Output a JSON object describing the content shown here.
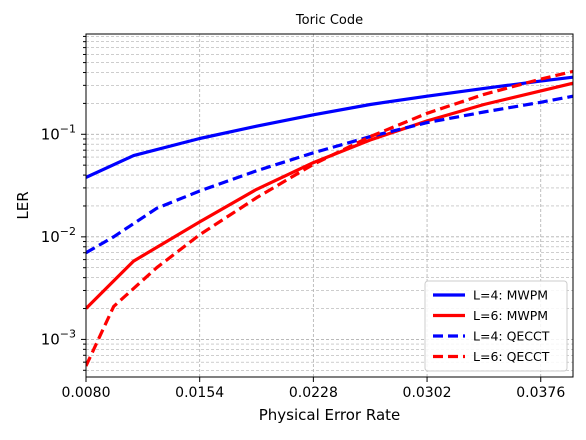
{
  "chart_data": {
    "type": "line",
    "title": "Toric Code",
    "xlabel": "Physical Error Rate",
    "ylabel": "LER",
    "x_ticks": [
      "0.0080",
      "0.0154",
      "0.0228",
      "0.0302",
      "0.0376"
    ],
    "y_ticks": [
      {
        "value": 0.001,
        "base": "10",
        "exp": "−3"
      },
      {
        "value": 0.01,
        "base": "10",
        "exp": "−2"
      },
      {
        "value": 0.1,
        "base": "10",
        "exp": "−1"
      }
    ],
    "xlim": [
      0.008,
      0.0397
    ],
    "ylim": [
      0.00043,
      0.95
    ],
    "yscale": "log",
    "grid": true,
    "legend_position": "lower right",
    "series": [
      {
        "name": "L=4: MWPM",
        "color": "#0000ff",
        "dash": "solid",
        "x": [
          0.008,
          0.0111,
          0.0154,
          0.0191,
          0.0228,
          0.0265,
          0.0302,
          0.0339,
          0.0376,
          0.0397
        ],
        "y": [
          0.038,
          0.062,
          0.091,
          0.12,
          0.155,
          0.195,
          0.235,
          0.28,
          0.33,
          0.36
        ]
      },
      {
        "name": "L=6: MWPM",
        "color": "#ff0000",
        "dash": "solid",
        "x": [
          0.008,
          0.0111,
          0.0154,
          0.0191,
          0.0228,
          0.0265,
          0.0302,
          0.0339,
          0.0376,
          0.0397
        ],
        "y": [
          0.002,
          0.0058,
          0.014,
          0.029,
          0.053,
          0.088,
          0.135,
          0.195,
          0.265,
          0.315
        ]
      },
      {
        "name": "L=4: QECCT",
        "color": "#0000ff",
        "dash": "dashed",
        "x": [
          0.008,
          0.0098,
          0.0126,
          0.0154,
          0.0191,
          0.0228,
          0.0265,
          0.0302,
          0.0339,
          0.0376,
          0.0397
        ],
        "y": [
          0.007,
          0.01,
          0.019,
          0.028,
          0.044,
          0.066,
          0.095,
          0.13,
          0.165,
          0.205,
          0.235
        ]
      },
      {
        "name": "L=6: QECCT",
        "color": "#ff0000",
        "dash": "dashed",
        "x": [
          0.008,
          0.0098,
          0.0126,
          0.0154,
          0.0191,
          0.0228,
          0.0265,
          0.0302,
          0.0339,
          0.0376,
          0.0397
        ],
        "y": [
          0.00055,
          0.0021,
          0.005,
          0.0105,
          0.024,
          0.051,
          0.095,
          0.16,
          0.245,
          0.345,
          0.41
        ]
      }
    ]
  }
}
